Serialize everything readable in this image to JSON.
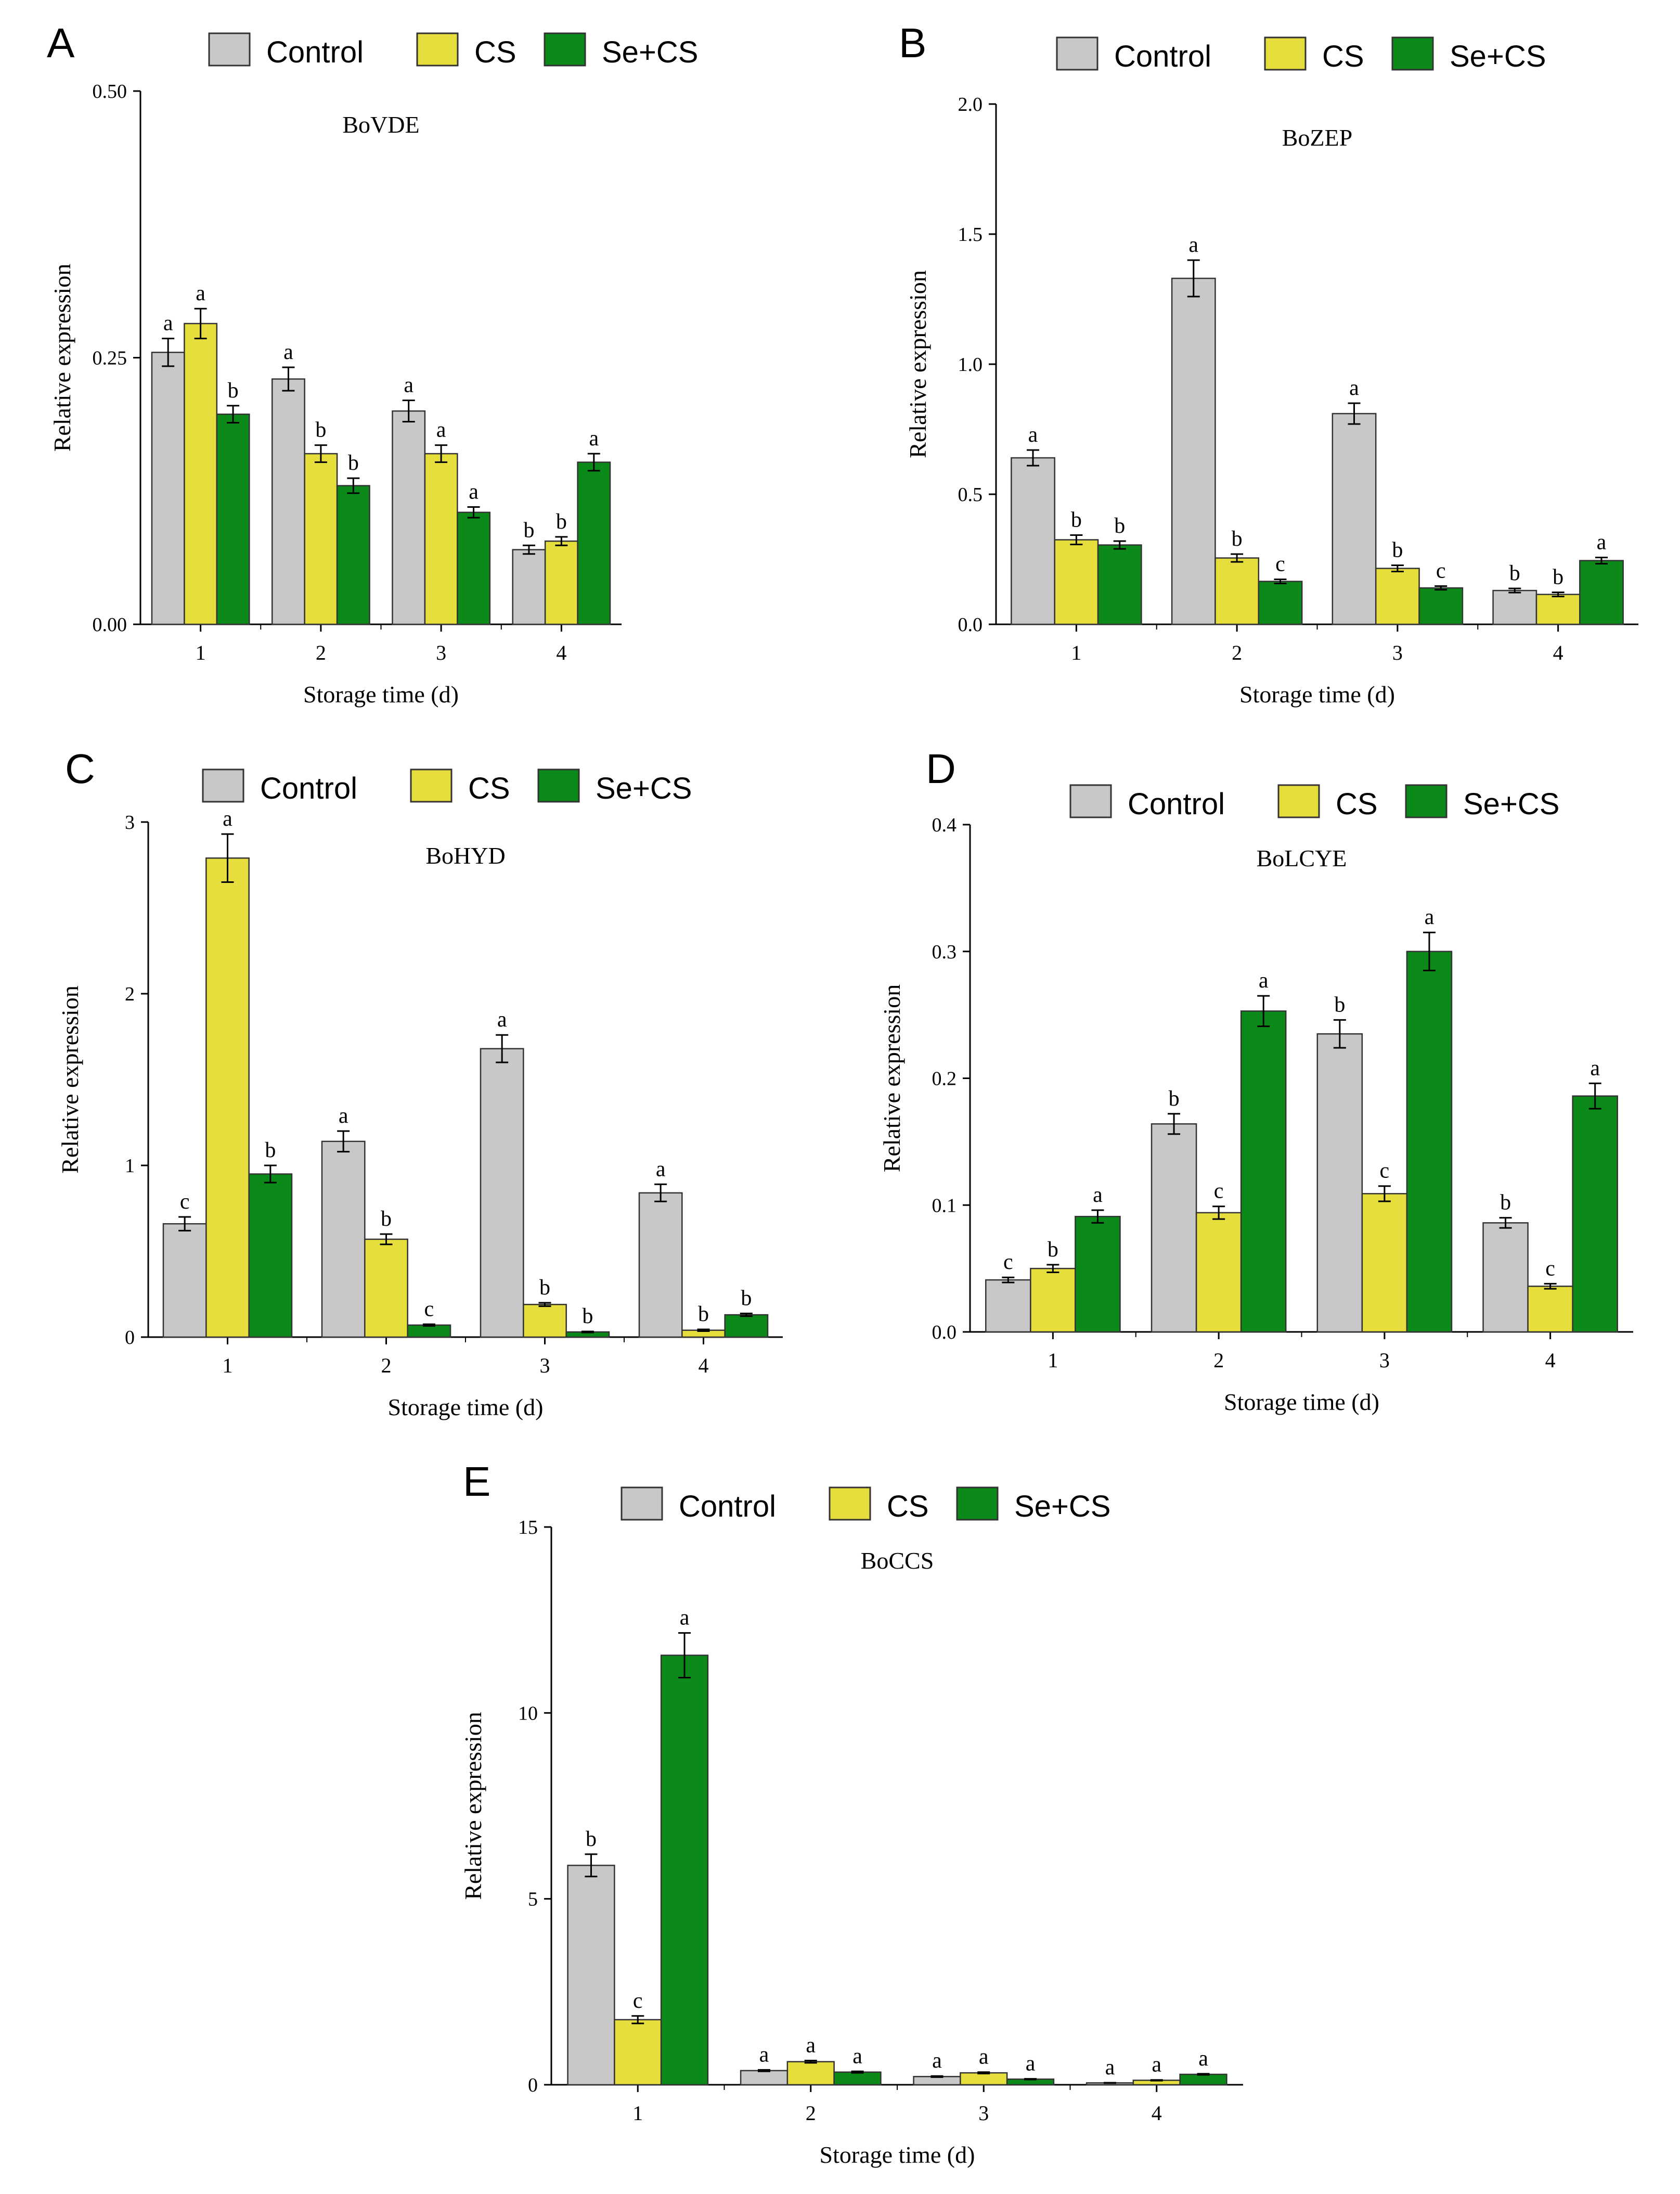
{
  "colors": {
    "Control": "#c8c8c8",
    "CS": "#e6de3c",
    "Se+CS": "#0b8a1a"
  },
  "legend_labels": [
    "Control",
    "CS",
    "Se+CS"
  ],
  "chart_data": [
    {
      "panel": "A",
      "type": "bar",
      "title": "BoVDE",
      "xlabel": "Storage time (d)",
      "ylabel": "Relative expression",
      "ylim": [
        0,
        0.5
      ],
      "yticks": [
        "0.00",
        "0.25",
        "0.50"
      ],
      "categories": [
        "1",
        "2",
        "3",
        "4"
      ],
      "series": [
        {
          "name": "Control",
          "values": [
            0.255,
            0.23,
            0.2,
            0.07
          ],
          "errors": [
            0.013,
            0.011,
            0.01,
            0.004
          ],
          "letters": [
            "a",
            "a",
            "a",
            "b"
          ]
        },
        {
          "name": "CS",
          "values": [
            0.282,
            0.16,
            0.16,
            0.078
          ],
          "errors": [
            0.014,
            0.008,
            0.008,
            0.004
          ],
          "letters": [
            "a",
            "b",
            "a",
            "b"
          ]
        },
        {
          "name": "Se+CS",
          "values": [
            0.197,
            0.13,
            0.105,
            0.152
          ],
          "errors": [
            0.008,
            0.007,
            0.005,
            0.008
          ],
          "letters": [
            "b",
            "b",
            "a",
            "a"
          ]
        }
      ]
    },
    {
      "panel": "B",
      "type": "bar",
      "title": "BoZEP",
      "xlabel": "Storage time (d)",
      "ylabel": "Relative expression",
      "ylim": [
        0,
        2.0
      ],
      "yticks": [
        "0.0",
        "0.5",
        "1.0",
        "1.5",
        "2.0"
      ],
      "categories": [
        "1",
        "2",
        "3",
        "4"
      ],
      "series": [
        {
          "name": "Control",
          "values": [
            0.64,
            1.33,
            0.81,
            0.13
          ],
          "errors": [
            0.03,
            0.07,
            0.04,
            0.008
          ],
          "letters": [
            "a",
            "a",
            "a",
            "b"
          ]
        },
        {
          "name": "CS",
          "values": [
            0.325,
            0.255,
            0.215,
            0.115
          ],
          "errors": [
            0.018,
            0.015,
            0.012,
            0.008
          ],
          "letters": [
            "b",
            "b",
            "b",
            "b"
          ]
        },
        {
          "name": "Se+CS",
          "values": [
            0.305,
            0.165,
            0.14,
            0.245
          ],
          "errors": [
            0.015,
            0.008,
            0.007,
            0.012
          ],
          "letters": [
            "b",
            "c",
            "c",
            "a"
          ]
        }
      ]
    },
    {
      "panel": "C",
      "type": "bar",
      "title": "BoHYD",
      "xlabel": "Storage time (d)",
      "ylabel": "Relative expression",
      "ylim": [
        0,
        3
      ],
      "yticks": [
        "0",
        "1",
        "2",
        "3"
      ],
      "categories": [
        "1",
        "2",
        "3",
        "4"
      ],
      "series": [
        {
          "name": "Control",
          "values": [
            0.66,
            1.14,
            1.68,
            0.84
          ],
          "errors": [
            0.04,
            0.06,
            0.08,
            0.05
          ],
          "letters": [
            "c",
            "a",
            "a",
            "a"
          ]
        },
        {
          "name": "CS",
          "values": [
            2.79,
            0.57,
            0.19,
            0.04
          ],
          "errors": [
            0.14,
            0.03,
            0.01,
            0.005
          ],
          "letters": [
            "a",
            "b",
            "b",
            "b"
          ]
        },
        {
          "name": "Se+CS",
          "values": [
            0.95,
            0.07,
            0.03,
            0.13
          ],
          "errors": [
            0.05,
            0.005,
            0.003,
            0.008
          ],
          "letters": [
            "b",
            "c",
            "b",
            "b"
          ]
        }
      ]
    },
    {
      "panel": "D",
      "type": "bar",
      "title": "BoLCYE",
      "xlabel": "Storage time (d)",
      "ylabel": "Relative expression",
      "ylim": [
        0,
        0.4
      ],
      "yticks": [
        "0.0",
        "0.1",
        "0.2",
        "0.3",
        "0.4"
      ],
      "categories": [
        "1",
        "2",
        "3",
        "4"
      ],
      "series": [
        {
          "name": "Control",
          "values": [
            0.041,
            0.164,
            0.235,
            0.086
          ],
          "errors": [
            0.002,
            0.008,
            0.011,
            0.004
          ],
          "letters": [
            "c",
            "b",
            "b",
            "b"
          ]
        },
        {
          "name": "CS",
          "values": [
            0.05,
            0.094,
            0.109,
            0.036
          ],
          "errors": [
            0.003,
            0.005,
            0.006,
            0.002
          ],
          "letters": [
            "b",
            "c",
            "c",
            "c"
          ]
        },
        {
          "name": "Se+CS",
          "values": [
            0.091,
            0.253,
            0.3,
            0.186
          ],
          "errors": [
            0.005,
            0.012,
            0.015,
            0.01
          ],
          "letters": [
            "a",
            "a",
            "a",
            "a"
          ]
        }
      ]
    },
    {
      "panel": "E",
      "type": "bar",
      "title": "BoCCS",
      "xlabel": "Storage time (d)",
      "ylabel": "Relative expression",
      "ylim": [
        0,
        15
      ],
      "yticks": [
        "0",
        "5",
        "10",
        "15"
      ],
      "categories": [
        "1",
        "2",
        "3",
        "4"
      ],
      "series": [
        {
          "name": "Control",
          "values": [
            5.9,
            0.38,
            0.22,
            0.05
          ],
          "errors": [
            0.3,
            0.02,
            0.015,
            0.005
          ],
          "letters": [
            "b",
            "a",
            "a",
            "a"
          ]
        },
        {
          "name": "CS",
          "values": [
            1.75,
            0.62,
            0.32,
            0.12
          ],
          "errors": [
            0.1,
            0.03,
            0.02,
            0.01
          ],
          "letters": [
            "c",
            "a",
            "a",
            "a"
          ]
        },
        {
          "name": "Se+CS",
          "values": [
            11.55,
            0.34,
            0.15,
            0.28
          ],
          "errors": [
            0.6,
            0.02,
            0.01,
            0.015
          ],
          "letters": [
            "a",
            "a",
            "a",
            "a"
          ]
        }
      ]
    }
  ]
}
